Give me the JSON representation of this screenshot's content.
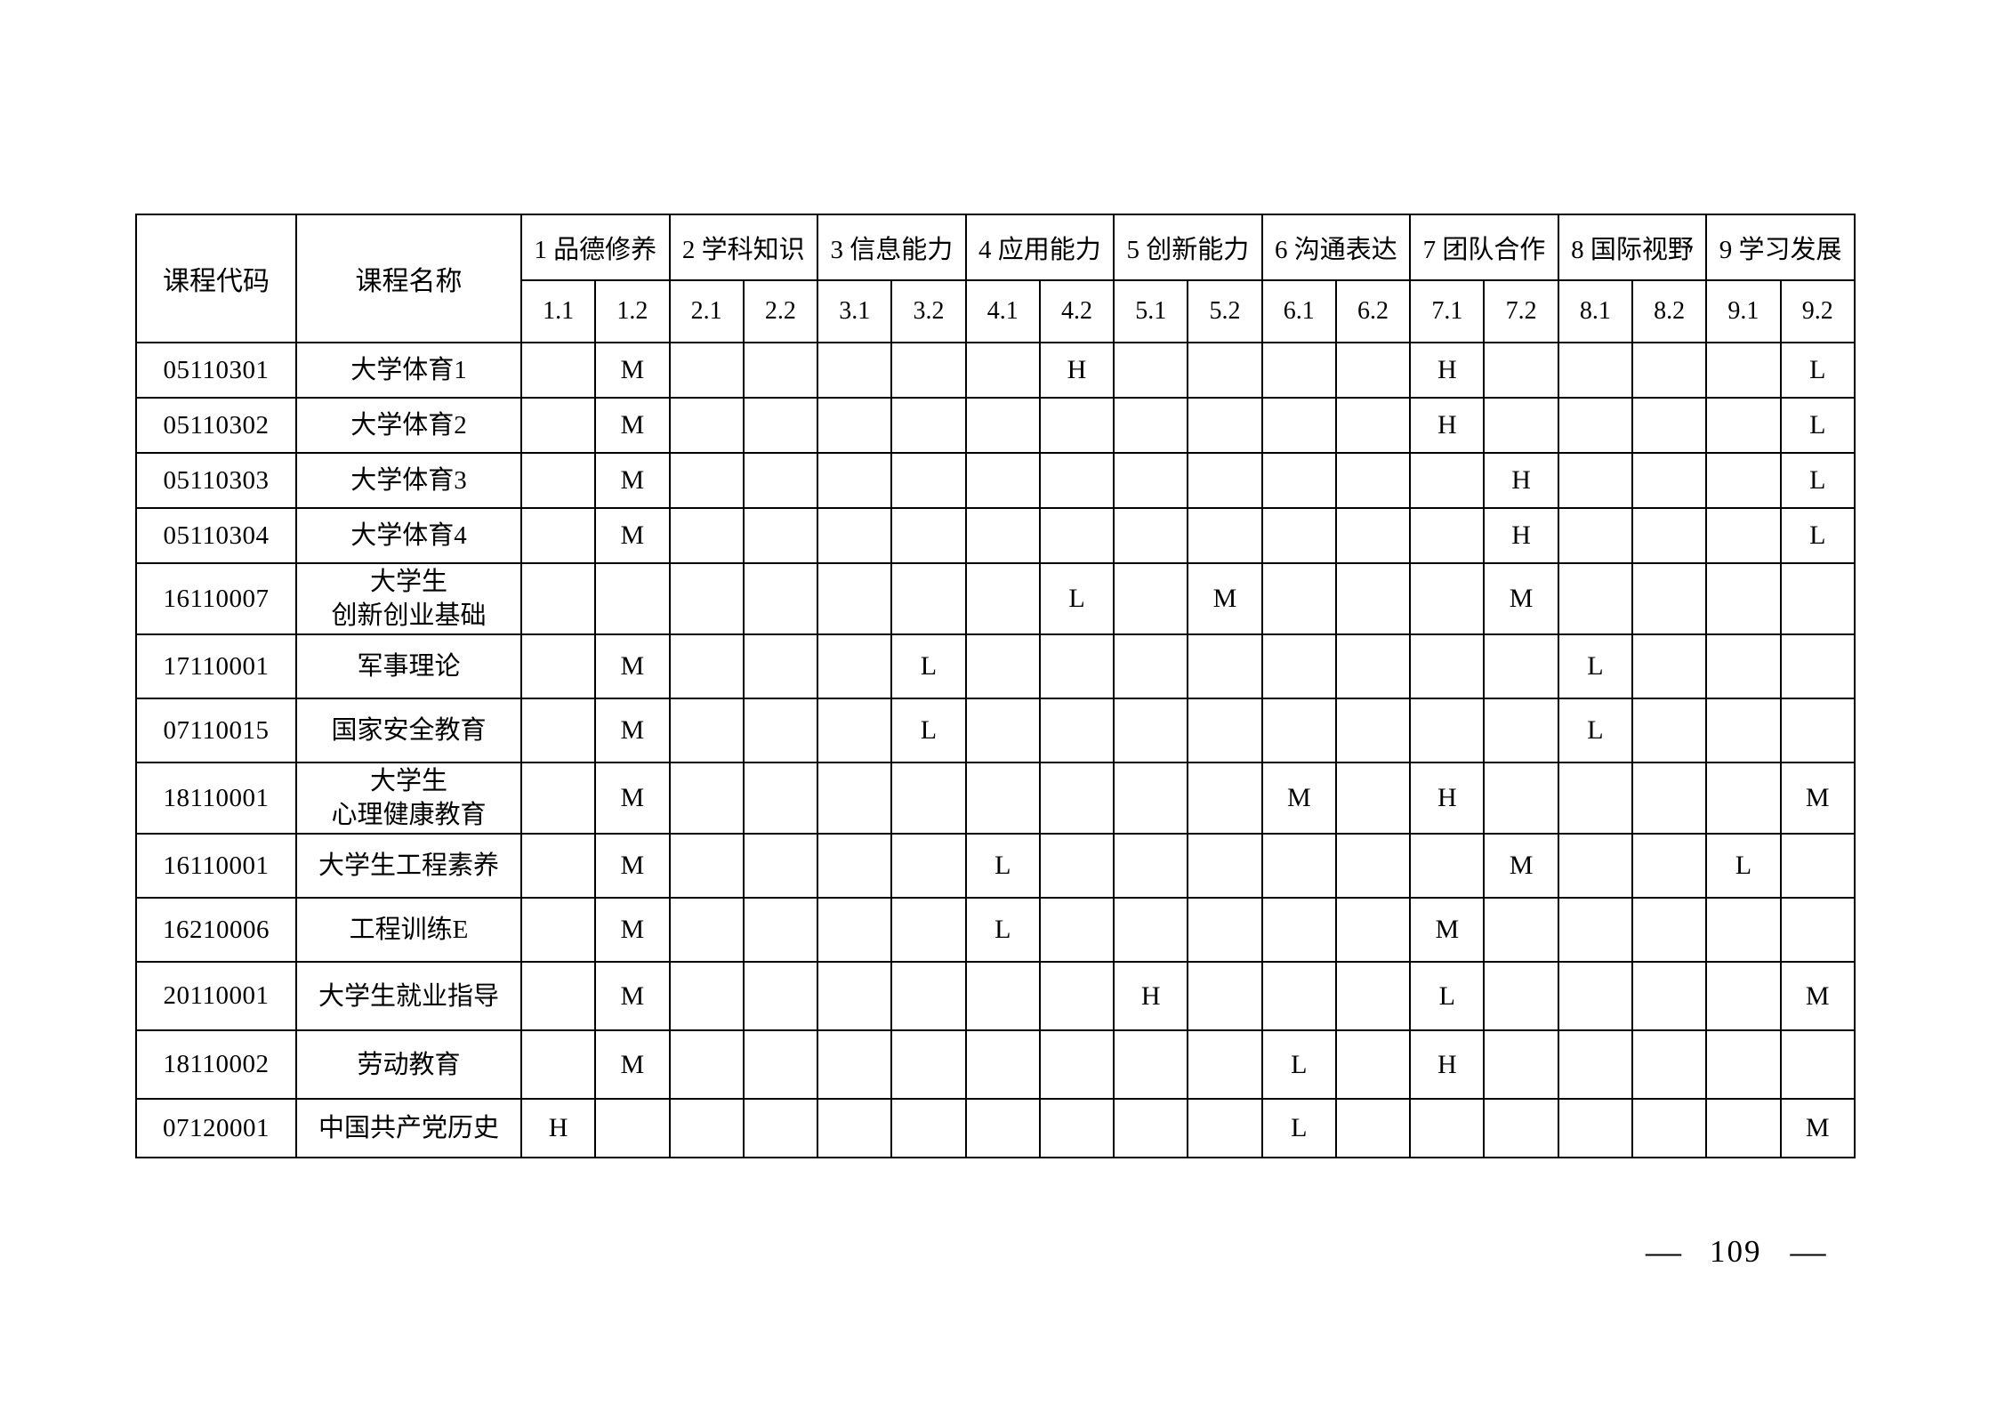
{
  "page": {
    "number_left_dash": "—",
    "number": "109",
    "number_right_dash": "—"
  },
  "table": {
    "corner_headers": [
      "课程代码",
      "课程名称"
    ],
    "groups": [
      {
        "label": "1 品德修养",
        "subs": [
          "1.1",
          "1.2"
        ]
      },
      {
        "label": "2 学科知识",
        "subs": [
          "2.1",
          "2.2"
        ]
      },
      {
        "label": "3 信息能力",
        "subs": [
          "3.1",
          "3.2"
        ]
      },
      {
        "label": "4 应用能力",
        "subs": [
          "4.1",
          "4.2"
        ]
      },
      {
        "label": "5 创新能力",
        "subs": [
          "5.1",
          "5.2"
        ]
      },
      {
        "label": "6 沟通表达",
        "subs": [
          "6.1",
          "6.2"
        ]
      },
      {
        "label": "7 团队合作",
        "subs": [
          "7.1",
          "7.2"
        ]
      },
      {
        "label": "8 国际视野",
        "subs": [
          "8.1",
          "8.2"
        ]
      },
      {
        "label": "9 学习发展",
        "subs": [
          "9.1",
          "9.2"
        ]
      }
    ],
    "sub_columns": [
      "1.1",
      "1.2",
      "2.1",
      "2.2",
      "3.1",
      "3.2",
      "4.1",
      "4.2",
      "5.1",
      "5.2",
      "6.1",
      "6.2",
      "7.1",
      "7.2",
      "8.1",
      "8.2",
      "9.1",
      "9.2"
    ],
    "rows": [
      {
        "code": "05110301",
        "name_lines": [
          "大学体育1"
        ],
        "values": [
          "",
          "M",
          "",
          "",
          "",
          "",
          "",
          "H",
          "",
          "",
          "",
          "",
          "H",
          "",
          "",
          "",
          "",
          "L"
        ]
      },
      {
        "code": "05110302",
        "name_lines": [
          "大学体育2"
        ],
        "values": [
          "",
          "M",
          "",
          "",
          "",
          "",
          "",
          "",
          "",
          "",
          "",
          "",
          "H",
          "",
          "",
          "",
          "",
          "L"
        ]
      },
      {
        "code": "05110303",
        "name_lines": [
          "大学体育3"
        ],
        "values": [
          "",
          "M",
          "",
          "",
          "",
          "",
          "",
          "",
          "",
          "",
          "",
          "",
          "",
          "H",
          "",
          "",
          "",
          "L"
        ]
      },
      {
        "code": "05110304",
        "name_lines": [
          "大学体育4"
        ],
        "values": [
          "",
          "M",
          "",
          "",
          "",
          "",
          "",
          "",
          "",
          "",
          "",
          "",
          "",
          "H",
          "",
          "",
          "",
          "L"
        ]
      },
      {
        "code": "16110007",
        "name_lines": [
          "大学生",
          "创新创业基础"
        ],
        "values": [
          "",
          "",
          "",
          "",
          "",
          "",
          "",
          "L",
          "",
          "M",
          "",
          "",
          "",
          "M",
          "",
          "",
          "",
          ""
        ]
      },
      {
        "code": "17110001",
        "name_lines": [
          "军事理论"
        ],
        "values": [
          "",
          "M",
          "",
          "",
          "",
          "L",
          "",
          "",
          "",
          "",
          "",
          "",
          "",
          "",
          "L",
          "",
          "",
          ""
        ]
      },
      {
        "code": "07110015",
        "name_lines": [
          "国家安全教育"
        ],
        "values": [
          "",
          "M",
          "",
          "",
          "",
          "L",
          "",
          "",
          "",
          "",
          "",
          "",
          "",
          "",
          "L",
          "",
          "",
          ""
        ]
      },
      {
        "code": "18110001",
        "name_lines": [
          "大学生",
          "心理健康教育"
        ],
        "values": [
          "",
          "M",
          "",
          "",
          "",
          "",
          "",
          "",
          "",
          "",
          "M",
          "",
          "H",
          "",
          "",
          "",
          "",
          "M"
        ]
      },
      {
        "code": "16110001",
        "name_lines": [
          "大学生工程素养"
        ],
        "values": [
          "",
          "M",
          "",
          "",
          "",
          "",
          "L",
          "",
          "",
          "",
          "",
          "",
          "",
          "M",
          "",
          "",
          "L",
          ""
        ]
      },
      {
        "code": "16210006",
        "name_lines": [
          "工程训练E"
        ],
        "values": [
          "",
          "M",
          "",
          "",
          "",
          "",
          "L",
          "",
          "",
          "",
          "",
          "",
          "M",
          "",
          "",
          "",
          "",
          ""
        ]
      },
      {
        "code": "20110001",
        "name_lines": [
          "大学生就业指导"
        ],
        "values": [
          "",
          "M",
          "",
          "",
          "",
          "",
          "",
          "",
          "H",
          "",
          "",
          "",
          "L",
          "",
          "",
          "",
          "",
          "M"
        ]
      },
      {
        "code": "18110002",
        "name_lines": [
          "劳动教育"
        ],
        "values": [
          "",
          "M",
          "",
          "",
          "",
          "",
          "",
          "",
          "",
          "",
          "L",
          "",
          "H",
          "",
          "",
          "",
          "",
          ""
        ]
      },
      {
        "code": "07120001",
        "name_lines": [
          "中国共产党历史"
        ],
        "values": [
          "H",
          "",
          "",
          "",
          "",
          "",
          "",
          "",
          "",
          "",
          "L",
          "",
          "",
          "",
          "",
          "",
          "",
          "M"
        ]
      }
    ]
  }
}
